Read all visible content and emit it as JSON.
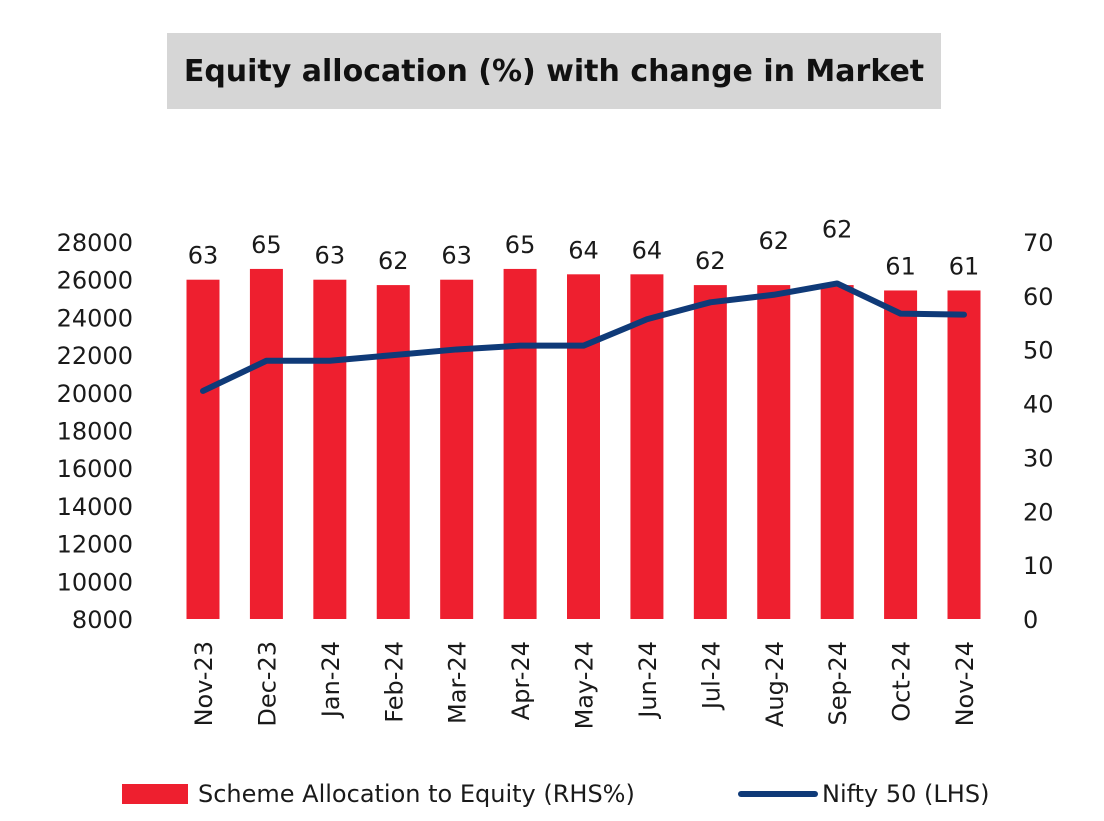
{
  "chart_data": {
    "type": "bar",
    "title": "Equity allocation (%) with change in Market",
    "categories": [
      "Nov-23",
      "Dec-23",
      "Jan-24",
      "Feb-24",
      "Mar-24",
      "Apr-24",
      "May-24",
      "Jun-24",
      "Jul-24",
      "Aug-24",
      "Sep-24",
      "Oct-24",
      "Nov-24"
    ],
    "series": [
      {
        "name": "Scheme Allocation to Equity (RHS%)",
        "type": "bar",
        "axis": "right",
        "color": "#ee1f2f",
        "values": [
          63,
          65,
          63,
          62,
          63,
          65,
          64,
          64,
          62,
          62,
          62,
          61,
          61
        ],
        "labels": [
          "63",
          "65",
          "63",
          "62",
          "63",
          "65",
          "64",
          "64",
          "62",
          "62",
          "62",
          "61",
          "61"
        ]
      },
      {
        "name": "Nifty 50 (LHS)",
        "type": "line",
        "axis": "left",
        "color": "#0f3a78",
        "values": [
          20100,
          21700,
          21700,
          22000,
          22300,
          22500,
          22500,
          23900,
          24800,
          25200,
          25800,
          24200,
          24150
        ]
      }
    ],
    "left_axis": {
      "ylim": [
        8000,
        28000
      ],
      "ticks": [
        "28000",
        "26000",
        "24000",
        "22000",
        "20000",
        "18000",
        "16000",
        "14000",
        "12000",
        "10000",
        "8000"
      ]
    },
    "right_axis": {
      "ylim": [
        0,
        70
      ],
      "ticks": [
        "70",
        "60",
        "50",
        "40",
        "30",
        "20",
        "10",
        "0"
      ]
    },
    "grid": false,
    "legend": "bottom"
  }
}
